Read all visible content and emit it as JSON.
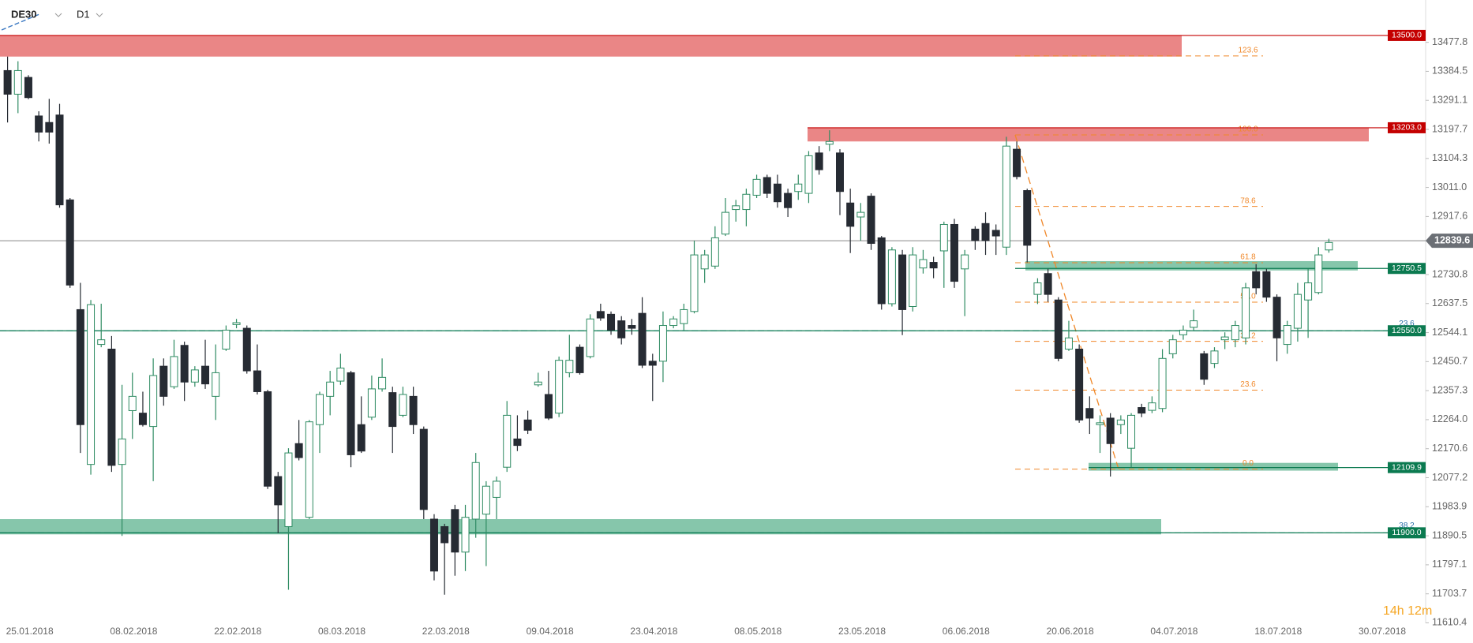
{
  "header": {
    "symbol": "DE30",
    "timeframe": "D1"
  },
  "timer": "14h 12m",
  "chart_data": {
    "type": "candlestick",
    "categories": [
      "25.01.2018",
      null,
      null,
      null,
      null,
      null,
      null,
      null,
      null,
      null,
      "08.02.2018",
      null,
      null,
      null,
      null,
      null,
      null,
      null,
      null,
      null,
      "22.02.2018",
      null,
      null,
      null,
      null,
      null,
      null,
      null,
      null,
      null,
      "08.03.2018",
      null,
      null,
      null,
      null,
      null,
      null,
      null,
      null,
      null,
      "22.03.2018",
      null,
      null,
      null,
      null,
      null,
      null,
      null,
      null,
      null,
      "09.04.2018",
      null,
      null,
      null,
      null,
      null,
      null,
      null,
      null,
      null,
      "23.04.2018",
      null,
      null,
      null,
      null,
      null,
      null,
      null,
      null,
      null,
      "08.05.2018",
      null,
      null,
      null,
      null,
      null,
      null,
      null,
      null,
      null,
      "23.05.2018",
      null,
      null,
      null,
      null,
      null,
      null,
      null,
      null,
      null,
      "06.06.2018",
      null,
      null,
      null,
      null,
      null,
      null,
      null,
      null,
      null,
      "20.06.2018",
      null,
      null,
      null,
      null,
      null,
      null,
      null,
      null,
      null,
      "04.07.2018",
      null,
      null,
      null,
      null,
      null,
      null,
      null,
      null,
      null,
      "18.07.2018",
      null,
      null,
      null,
      null,
      null,
      null,
      null,
      null,
      null,
      "30.07.2018"
    ],
    "open": [
      13387,
      13311,
      13365,
      13241,
      13220,
      13244,
      12971,
      12618,
      12120,
      12506,
      12491,
      12120,
      12293,
      12285,
      12242,
      12436,
      12370,
      12503,
      12385,
      12436,
      12339,
      12491,
      12570,
      12558,
      12421,
      12354,
      12081,
      11920,
      12187,
      11950,
      12248,
      12339,
      12388,
      12415,
      12248,
      12272,
      12363,
      12351,
      12278,
      12339,
      12233,
      11944,
      11920,
      11975,
      11838,
      11944,
      11960,
      12014,
      12111,
      12202,
      12263,
      12376,
      12345,
      12285,
      12415,
      12497,
      12467,
      12612,
      12603,
      12582,
      12567,
      12606,
      12452,
      12452,
      12567,
      12573,
      12612,
      12749,
      12758,
      12861,
      12940,
      12940,
      12986,
      13043,
      13022,
      12992,
      12998,
      12992,
      13122,
      13150,
      13122,
      12961,
      12916,
      12983,
      12849,
      12637,
      12794,
      12628,
      12752,
      12770,
      12807,
      12892,
      12749,
      12877,
      12895,
      12873,
      12819,
      13134,
      13001,
      12667,
      12734,
      12649,
      12491,
      12491,
      12300,
      12248,
      12269,
      12248,
      12172,
      12303,
      12294,
      12300,
      12476,
      12537,
      12561,
      12476,
      12445,
      12521,
      12521,
      12527,
      12740,
      12740,
      12658,
      12506,
      12558,
      12649,
      12673,
      12810,
      null,
      null,
      null
    ],
    "high": [
      13432,
      13417,
      13372,
      13256,
      13296,
      13280,
      12977,
      12704,
      12649,
      12637,
      12533,
      12376,
      12415,
      12354,
      12461,
      12461,
      12521,
      12515,
      12436,
      12521,
      12506,
      12567,
      12588,
      12567,
      12506,
      12360,
      12096,
      12172,
      12263,
      12263,
      12354,
      12421,
      12476,
      12421,
      12339,
      12406,
      12461,
      12370,
      12370,
      12370,
      12242,
      11960,
      11929,
      11990,
      11990,
      12157,
      12066,
      12081,
      12324,
      12278,
      12293,
      12415,
      12421,
      12467,
      12537,
      12506,
      12603,
      12637,
      12612,
      12597,
      12588,
      12658,
      12476,
      12612,
      12597,
      12637,
      12840,
      12810,
      12886,
      12977,
      12971,
      13007,
      13052,
      13052,
      13052,
      13007,
      13052,
      13128,
      13144,
      13195,
      13134,
      13007,
      12961,
      12992,
      12855,
      12819,
      12810,
      12819,
      12810,
      12788,
      12901,
      12910,
      12810,
      12886,
      12931,
      12892,
      13174,
      13159,
      13007,
      12719,
      12749,
      12658,
      12582,
      12506,
      12339,
      12278,
      12285,
      12278,
      12285,
      12315,
      12339,
      12491,
      12537,
      12567,
      12618,
      12485,
      12497,
      12545,
      12582,
      12704,
      12764,
      12749,
      12667,
      12582,
      12704,
      12749,
      12819,
      12846,
      null,
      null,
      null
    ],
    "low": [
      13220,
      13250,
      13295,
      13159,
      13152,
      12946,
      12688,
      12157,
      12087,
      12497,
      12096,
      11890,
      12202,
      12242,
      12066,
      12309,
      12363,
      12324,
      12370,
      12363,
      12263,
      12485,
      12558,
      12412,
      12345,
      12041,
      11899,
      11717,
      12133,
      11944,
      12157,
      12278,
      12376,
      12111,
      12157,
      12263,
      12354,
      12157,
      12272,
      12218,
      11944,
      11747,
      11701,
      11762,
      11777,
      11884,
      11793,
      11944,
      12096,
      12163,
      12218,
      12370,
      12263,
      12272,
      12400,
      12409,
      12461,
      12582,
      12537,
      12506,
      12537,
      12430,
      12324,
      12385,
      12558,
      12552,
      12606,
      12704,
      12749,
      12855,
      12901,
      12886,
      12977,
      12977,
      12946,
      12916,
      12971,
      12961,
      13052,
      13128,
      12922,
      12800,
      12840,
      12810,
      12618,
      12628,
      12536,
      12612,
      12734,
      12719,
      12688,
      12688,
      12597,
      12810,
      12794,
      12794,
      12794,
      13037,
      12770,
      12636,
      12643,
      12452,
      12485,
      12254,
      12218,
      12157,
      12081,
      12218,
      12111,
      12272,
      12285,
      12288,
      12461,
      12521,
      12552,
      12376,
      12430,
      12491,
      12497,
      12506,
      12667,
      12643,
      12452,
      12476,
      12515,
      12527,
      12667,
      12801,
      null,
      null,
      null
    ],
    "close": [
      13311,
      13387,
      13300,
      13189,
      13189,
      12955,
      12697,
      12248,
      12634,
      12521,
      12117,
      12202,
      12339,
      12248,
      12406,
      12339,
      12467,
      12385,
      12424,
      12379,
      12415,
      12552,
      12576,
      12421,
      12354,
      12050,
      11990,
      12157,
      12142,
      12257,
      12345,
      12385,
      12430,
      12151,
      12163,
      12363,
      12400,
      12242,
      12345,
      12248,
      11975,
      11777,
      11868,
      11838,
      11950,
      12126,
      12050,
      12066,
      12278,
      12181,
      12230,
      12385,
      12269,
      12455,
      12455,
      12415,
      12588,
      12591,
      12552,
      12527,
      12558,
      12439,
      12439,
      12567,
      12588,
      12618,
      12794,
      12794,
      12849,
      12931,
      12952,
      12989,
      13037,
      12992,
      12965,
      12946,
      13022,
      13113,
      13068,
      13159,
      12998,
      12886,
      12931,
      12831,
      12637,
      12810,
      12618,
      12794,
      12779,
      12752,
      12892,
      12709,
      12794,
      12840,
      12840,
      12855,
      13144,
      13046,
      12825,
      12704,
      12667,
      12461,
      12527,
      12263,
      12269,
      12254,
      12187,
      12263,
      12278,
      12285,
      12318,
      12461,
      12521,
      12552,
      12582,
      12394,
      12485,
      12530,
      12567,
      12688,
      12688,
      12658,
      12527,
      12567,
      12667,
      12704,
      12794,
      12834,
      null,
      null,
      null
    ],
    "up_color": "#2e8b62",
    "down_color": "#262b33",
    "ylim": [
      11609,
      13614
    ],
    "yticks": [
      13477.8,
      13384.5,
      13291.1,
      13197.7,
      13104.3,
      {
        "value": 13011,
        "label": "13011.0"
      },
      12917.6,
      12730.8,
      12637.5,
      12544.1,
      12450.7,
      12357.3,
      {
        "value": 12264,
        "label": "12264.0"
      },
      12170.6,
      12077.2,
      11983.9,
      11890.5,
      11797.1,
      11703.7,
      11610.4
    ],
    "last_price": 12839.6,
    "levels": [
      {
        "value": 13500,
        "label": "13500.0",
        "color": "#c40000"
      },
      {
        "value": 13203,
        "label": "13203.0",
        "color": "#c40000"
      },
      {
        "value": 12750.5,
        "color": "#0b7a50"
      },
      {
        "value": 12550,
        "label": "12550.0",
        "color": "#0b7a50"
      },
      {
        "value": 12109.9,
        "color": "#0b7a50"
      },
      {
        "value": 11900,
        "label": "11900.0",
        "color": "#0b7a50"
      }
    ],
    "zones": [
      {
        "from": 13432,
        "to": 13500,
        "color": "#e98080"
      },
      {
        "from": 13159,
        "to": 13203,
        "color": "#e98080"
      },
      {
        "from": 12744,
        "to": 12774,
        "color": "#80c3a6"
      },
      {
        "from": 12100,
        "to": 12125,
        "color": "#80c3a6"
      },
      {
        "from": 11895,
        "to": 11944,
        "color": "#80c3a6"
      }
    ],
    "fibonacci": {
      "color": "#f0882a",
      "levels": [
        {
          "text": "123.6",
          "price": 13434
        },
        {
          "text": "100.0",
          "price": 13180
        },
        {
          "text": "78.6",
          "price": 12950
        },
        {
          "text": "61.8",
          "price": 12769
        },
        {
          "text": "50.0",
          "price": 12642
        },
        {
          "text": "38.2",
          "price": 12516
        },
        {
          "text": "23.6",
          "price": 12359
        },
        {
          "text": "0.0",
          "price": 12105
        }
      ]
    },
    "secondary_fibonacci": [
      {
        "text": "23.6",
        "price": 12550
      },
      {
        "text": "38.2",
        "price": 11900
      }
    ]
  }
}
